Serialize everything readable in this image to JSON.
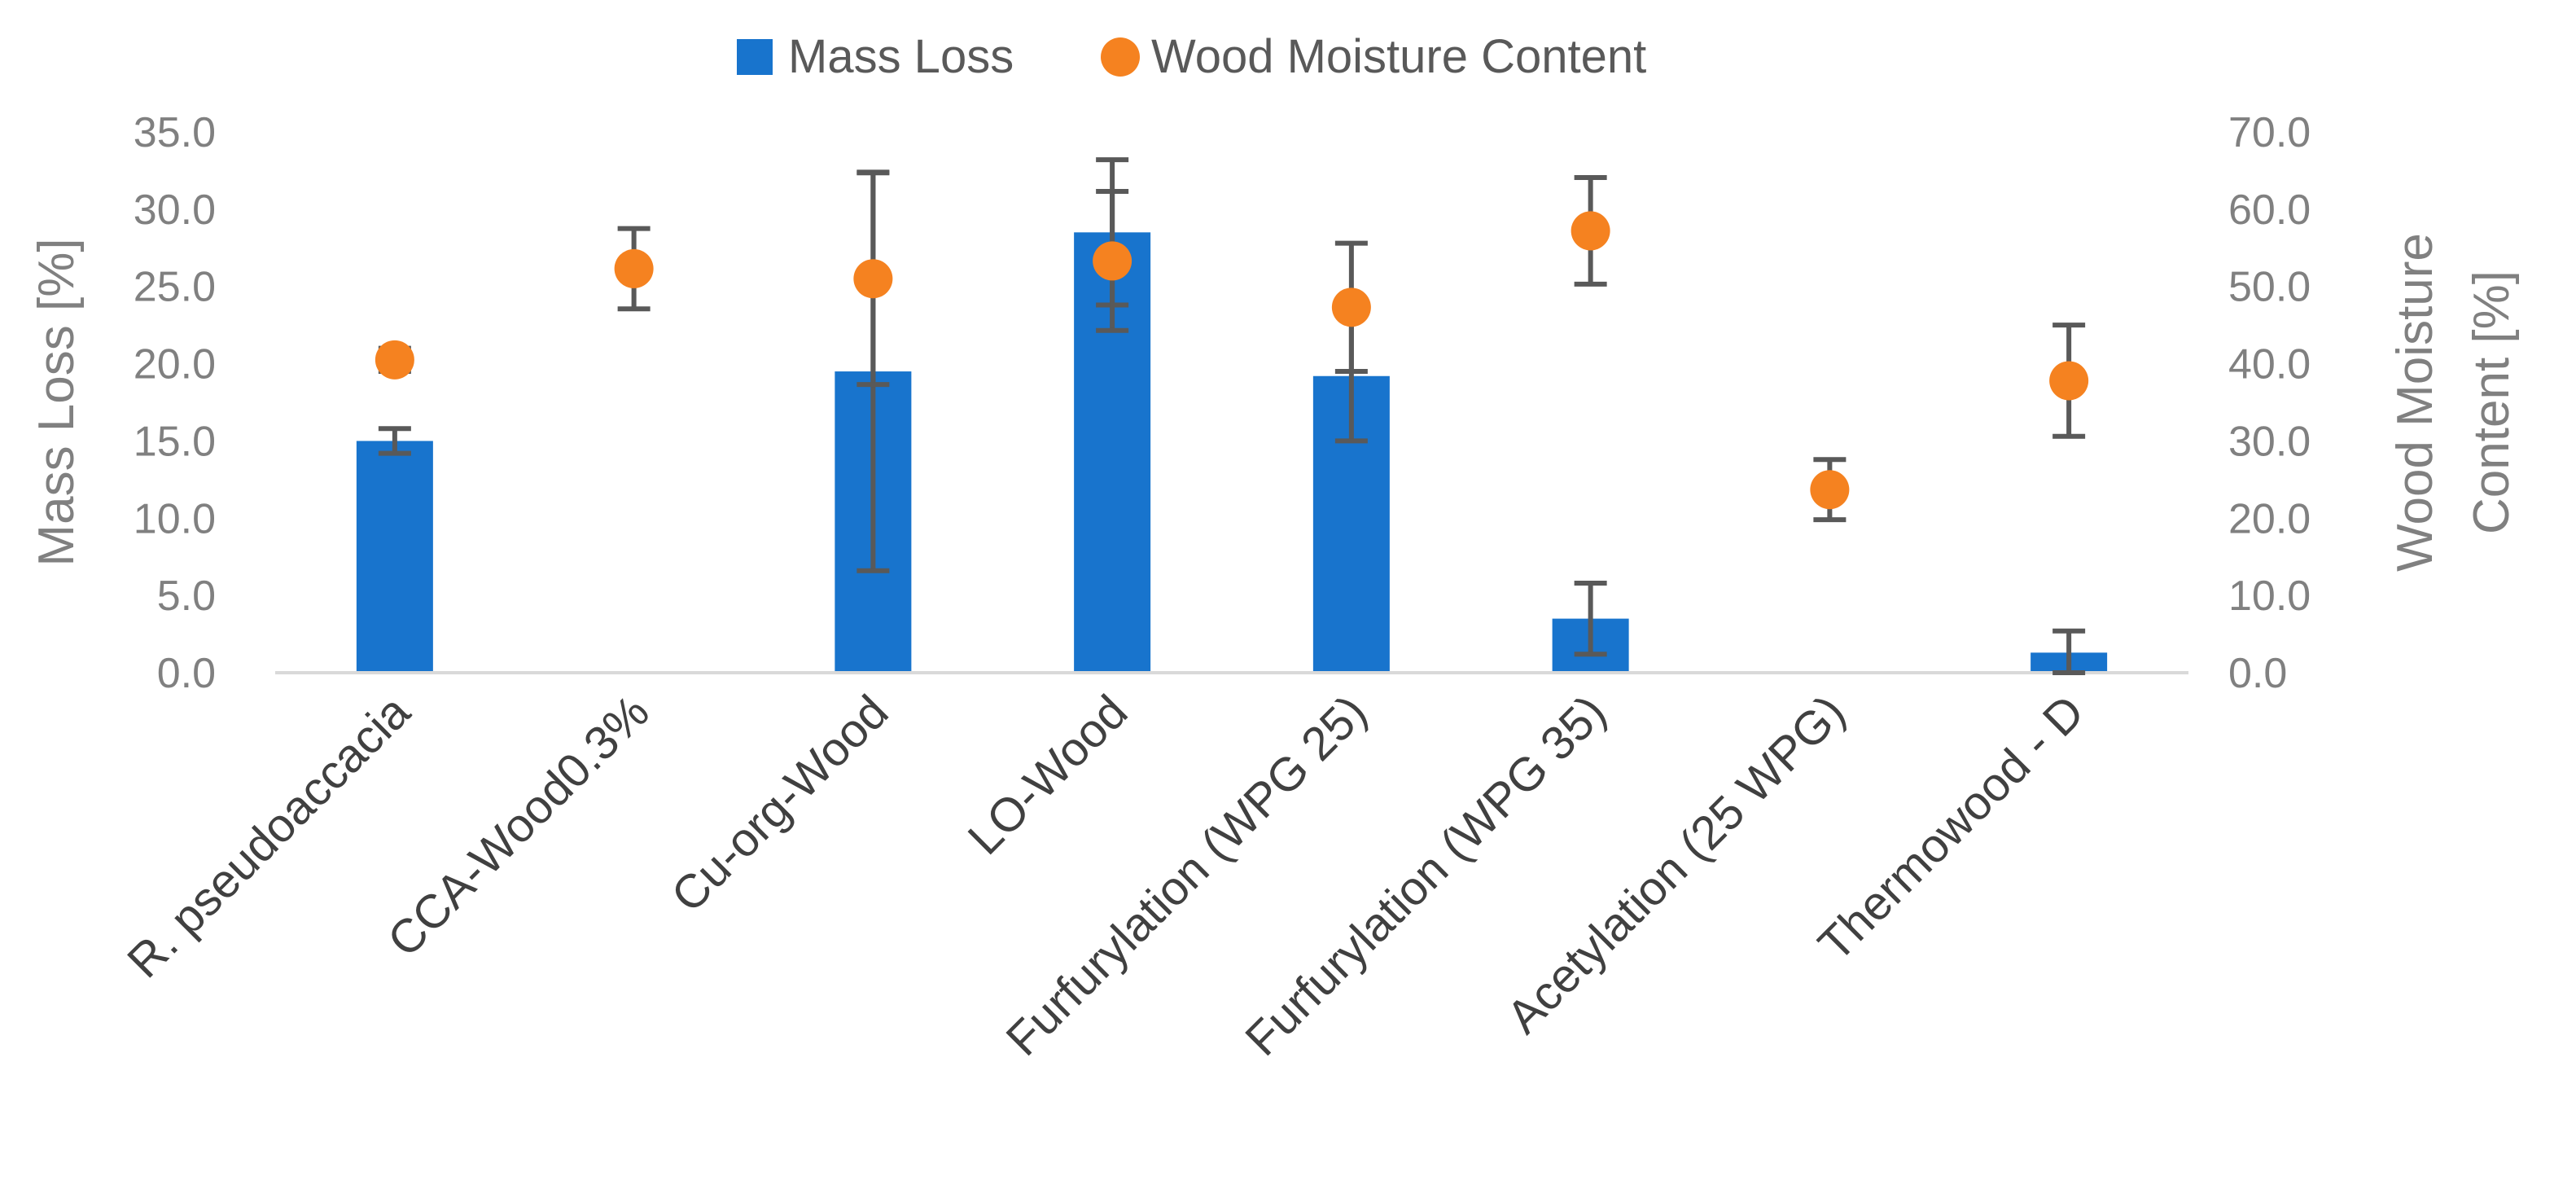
{
  "chart_data": {
    "type": "bar",
    "categories": [
      "R. pseudoaccacia",
      "CCA-Wood0.3%",
      "Cu-org-Wood",
      "LO-Wood",
      "Furfurylation (WPG 25)",
      "Furfurylation (WPG 35)",
      "Acetylation (25 WPG)",
      "Thermowood - D"
    ],
    "series": [
      {
        "name": "Mass Loss",
        "axis": "left",
        "mark": "bar",
        "color": "#1874CD",
        "values": [
          15.0,
          0.0,
          19.5,
          28.5,
          19.2,
          3.5,
          0.0,
          1.3
        ],
        "errors": [
          0.8,
          null,
          12.9,
          4.7,
          4.2,
          2.3,
          null,
          1.4
        ]
      },
      {
        "name": "Wood Moisture Content",
        "axis": "right",
        "mark": "dot",
        "color": "#F58220",
        "values": [
          40.5,
          52.3,
          51.0,
          53.3,
          47.3,
          57.2,
          23.7,
          37.8
        ],
        "errors": [
          1.5,
          5.2,
          13.7,
          9.0,
          8.3,
          6.9,
          3.9,
          7.2
        ]
      }
    ],
    "left_axis": {
      "title": "Mass Loss [%]",
      "range": [
        0,
        35
      ],
      "ticks": [
        "0.0",
        "5.0",
        "10.0",
        "15.0",
        "20.0",
        "25.0",
        "30.0",
        "35.0"
      ]
    },
    "right_axis": {
      "title_lines": [
        "Wood Moisture",
        "Content [%]"
      ],
      "range": [
        0,
        70
      ],
      "ticks": [
        "0.0",
        "10.0",
        "20.0",
        "30.0",
        "40.0",
        "50.0",
        "60.0",
        "70.0"
      ]
    },
    "legend": {
      "position": "top-center",
      "items": [
        "Mass Loss",
        "Wood Moisture Content"
      ]
    },
    "error_bar_color": "#595959",
    "axis_line_color": "#D9D9D9",
    "grid": false
  }
}
